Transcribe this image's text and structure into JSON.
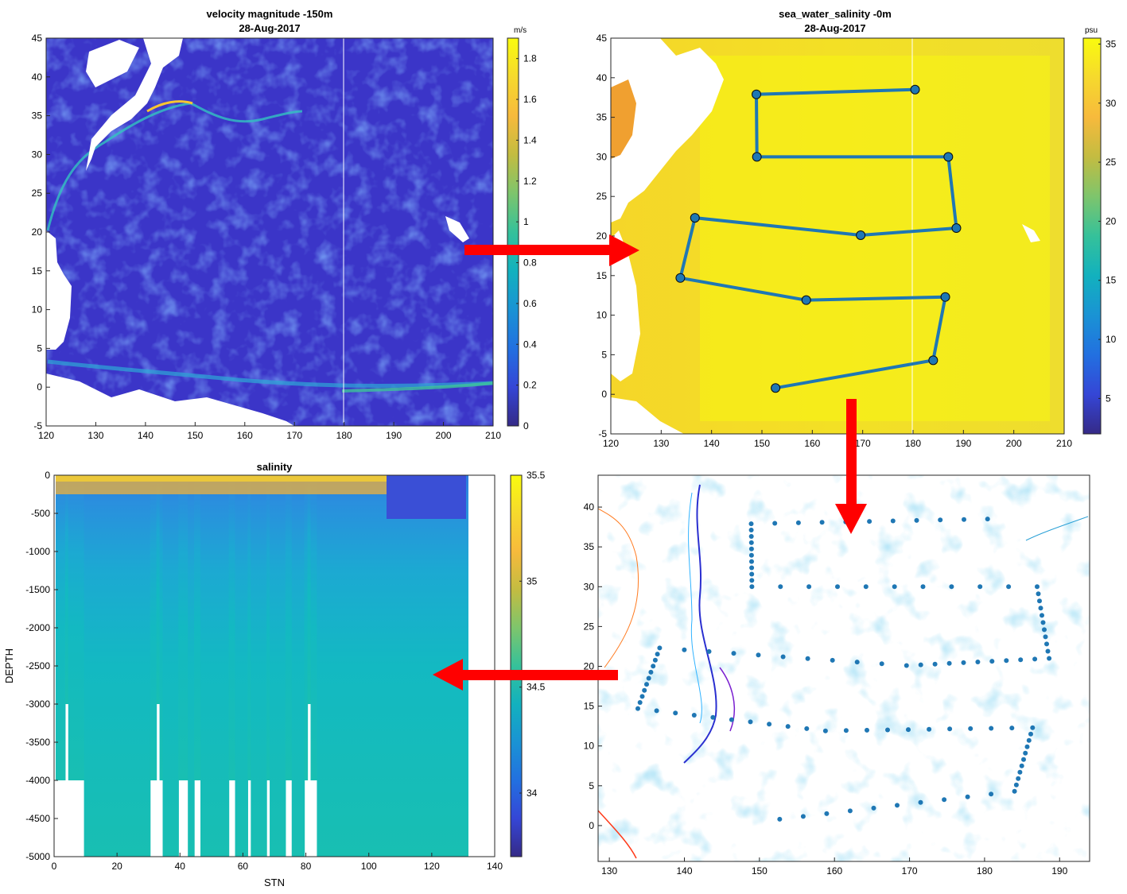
{
  "colors": {
    "parula_stops": [
      "#352a87",
      "#3546d6",
      "#2270e0",
      "#1a93d4",
      "#12b1be",
      "#35c19a",
      "#7ec56c",
      "#c3bc41",
      "#f7ba3c",
      "#f6d92d",
      "#f9fb0e"
    ],
    "route": "#1f77b4",
    "arrow": "#ff0000"
  },
  "chart_data": [
    {
      "id": "velocity",
      "type": "heatmap",
      "title": "velocity magnitude -150m",
      "subtitle": "28-Aug-2017",
      "colorbar_unit": "m/s",
      "xlim": [
        120,
        210
      ],
      "ylim": [
        -5,
        45
      ],
      "xticks": [
        120,
        130,
        140,
        150,
        160,
        170,
        180,
        190,
        200,
        210
      ],
      "yticks": [
        -5,
        0,
        5,
        10,
        15,
        20,
        25,
        30,
        35,
        40,
        45
      ],
      "clim": [
        0,
        1.9
      ],
      "cticks": [
        0,
        0.2,
        0.4,
        0.6,
        0.8,
        1,
        1.2,
        1.4,
        1.6,
        1.8
      ]
    },
    {
      "id": "salinity_surface",
      "type": "heatmap",
      "title": "sea_water_salinity -0m",
      "subtitle": "28-Aug-2017",
      "colorbar_unit": "psu",
      "xlim": [
        120,
        210
      ],
      "ylim": [
        -5,
        45
      ],
      "xticks": [
        120,
        130,
        140,
        150,
        160,
        170,
        180,
        190,
        200,
        210
      ],
      "yticks": [
        -5,
        0,
        5,
        10,
        15,
        20,
        25,
        30,
        35,
        40,
        45
      ],
      "clim": [
        2,
        35.5
      ],
      "cticks": [
        5,
        10,
        15,
        20,
        25,
        30,
        35
      ],
      "route": {
        "lon": [
          180.4,
          148.9,
          149.0,
          187.0,
          188.6,
          169.6,
          136.7,
          133.8,
          158.8,
          186.4,
          184.0,
          152.7
        ],
        "lat": [
          38.5,
          37.9,
          30.0,
          30.0,
          21.0,
          20.1,
          22.3,
          14.7,
          11.9,
          12.3,
          4.3,
          0.8
        ]
      }
    },
    {
      "id": "salinity_section",
      "type": "heatmap",
      "title": "salinity",
      "xlabel": "STN",
      "ylabel": "DEPTH",
      "xlim": [
        0,
        140
      ],
      "ylim": [
        -5000,
        0
      ],
      "xticks": [
        0,
        20,
        40,
        60,
        80,
        100,
        120,
        140
      ],
      "yticks": [
        -5000,
        -4500,
        -4000,
        -3500,
        -3000,
        -2500,
        -2000,
        -1500,
        -1000,
        -500,
        0
      ],
      "clim": [
        33.7,
        35.5
      ],
      "cticks": [
        34,
        34.5,
        35,
        35.5
      ],
      "bottom_depth": [
        -4000,
        -4000,
        -4000,
        -3000,
        -4000,
        -4000,
        -4000,
        -4000,
        -4000,
        -5000,
        -5000,
        -5000,
        -5000,
        -5000,
        -5000,
        -5000,
        -5000,
        -5000,
        -5000,
        -5000,
        -5000,
        -5000,
        -5000,
        -5000,
        -5000,
        -5000,
        -5000,
        -5000,
        -5000,
        -5000,
        -4000,
        -4000,
        -3000,
        -4000,
        -5000,
        -5000,
        -5000,
        -5000,
        -5000,
        -4000,
        -4000,
        -4000,
        -5000,
        -5000,
        -4000,
        -4000,
        -5000,
        -5000,
        -5000,
        -5000,
        -5000,
        -5000,
        -5000,
        -5000,
        -5000,
        -4000,
        -4000,
        -5000,
        -5000,
        -5000,
        -5000,
        -4000,
        -5000,
        -5000,
        -5000,
        -5000,
        -5000,
        -4000,
        -5000,
        -5000,
        -5000,
        -5000,
        -5000,
        -4000,
        -4000,
        -5000,
        -5000,
        -5000,
        -5000,
        -4000,
        -3000,
        -4000,
        -4000,
        -5000,
        -5000,
        -5000,
        -5000,
        -5000,
        -5000,
        -5000,
        -5000,
        -5000,
        -5000,
        -5000,
        -5000,
        -5000,
        -5000,
        -5000,
        -5000,
        -5000,
        -5000,
        -5000,
        -5000,
        -5000,
        -5000,
        -5000,
        -5000,
        -5000,
        -5000,
        -5000,
        -5000,
        -5000,
        -5000,
        -5000,
        -5000,
        -5000,
        -5000,
        -5000,
        -5000,
        -5000,
        -5000,
        -5000,
        -5000,
        -5000,
        -5000,
        -5000,
        -5000,
        -5000,
        -5000,
        -5000,
        -5000
      ]
    },
    {
      "id": "station_map",
      "type": "scatter",
      "xlim": [
        128.5,
        194
      ],
      "ylim": [
        -4.5,
        44
      ],
      "xticks": [
        130,
        140,
        150,
        160,
        170,
        180,
        190
      ],
      "yticks": [
        0,
        5,
        10,
        15,
        20,
        25,
        30,
        35,
        40
      ]
    }
  ]
}
